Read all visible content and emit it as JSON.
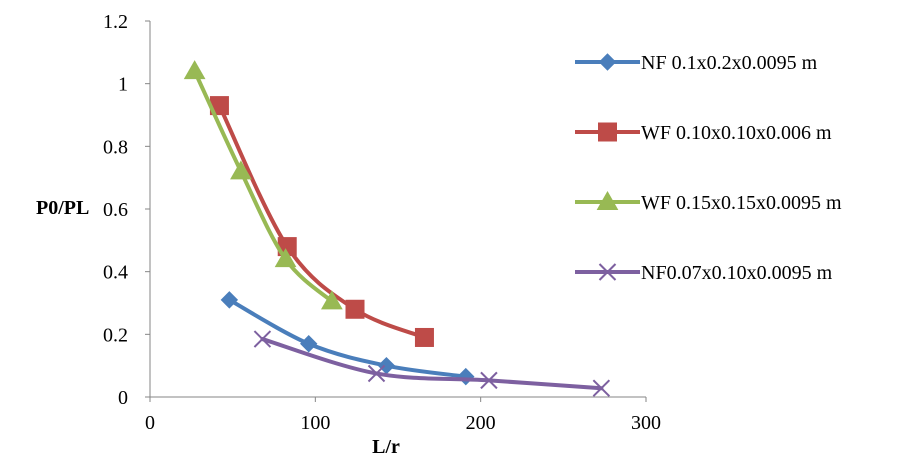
{
  "colors": {
    "series_1": "#4A7EBB",
    "series_2": "#BE4B48",
    "series_3": "#98B954",
    "series_4": "#7D60A0"
  },
  "chart_data": {
    "type": "line",
    "title": "",
    "xlabel": "L/r",
    "ylabel": "P0/PL",
    "xlim": [
      0,
      300
    ],
    "ylim": [
      0,
      1.2
    ],
    "x_ticks": [
      "0",
      "100",
      "200",
      "300"
    ],
    "y_ticks": [
      "0",
      "0.2",
      "0.4",
      "0.6",
      "0.8",
      "1",
      "1.2"
    ],
    "grid": false,
    "legend_position": "right",
    "series": [
      {
        "name": "NF 0.1x0.2x0.0095 m",
        "marker": "diamond",
        "points": [
          [
            48,
            0.31
          ],
          [
            96,
            0.17
          ],
          [
            143,
            0.1
          ],
          [
            191,
            0.065
          ]
        ]
      },
      {
        "name": "WF 0.10x0.10x0.006 m",
        "marker": "square",
        "points": [
          [
            42,
            0.93
          ],
          [
            83,
            0.48
          ],
          [
            124,
            0.28
          ],
          [
            166,
            0.19
          ]
        ]
      },
      {
        "name": "WF 0.15x0.15x0.0095 m",
        "marker": "triangle",
        "points": [
          [
            27,
            1.04
          ],
          [
            55,
            0.72
          ],
          [
            82,
            0.44
          ],
          [
            110,
            0.305
          ]
        ]
      },
      {
        "name": "NF0.07x0.10x0.0095 m",
        "marker": "x",
        "points": [
          [
            68,
            0.185
          ],
          [
            137,
            0.075
          ],
          [
            205,
            0.053
          ],
          [
            273,
            0.028
          ]
        ]
      }
    ]
  }
}
